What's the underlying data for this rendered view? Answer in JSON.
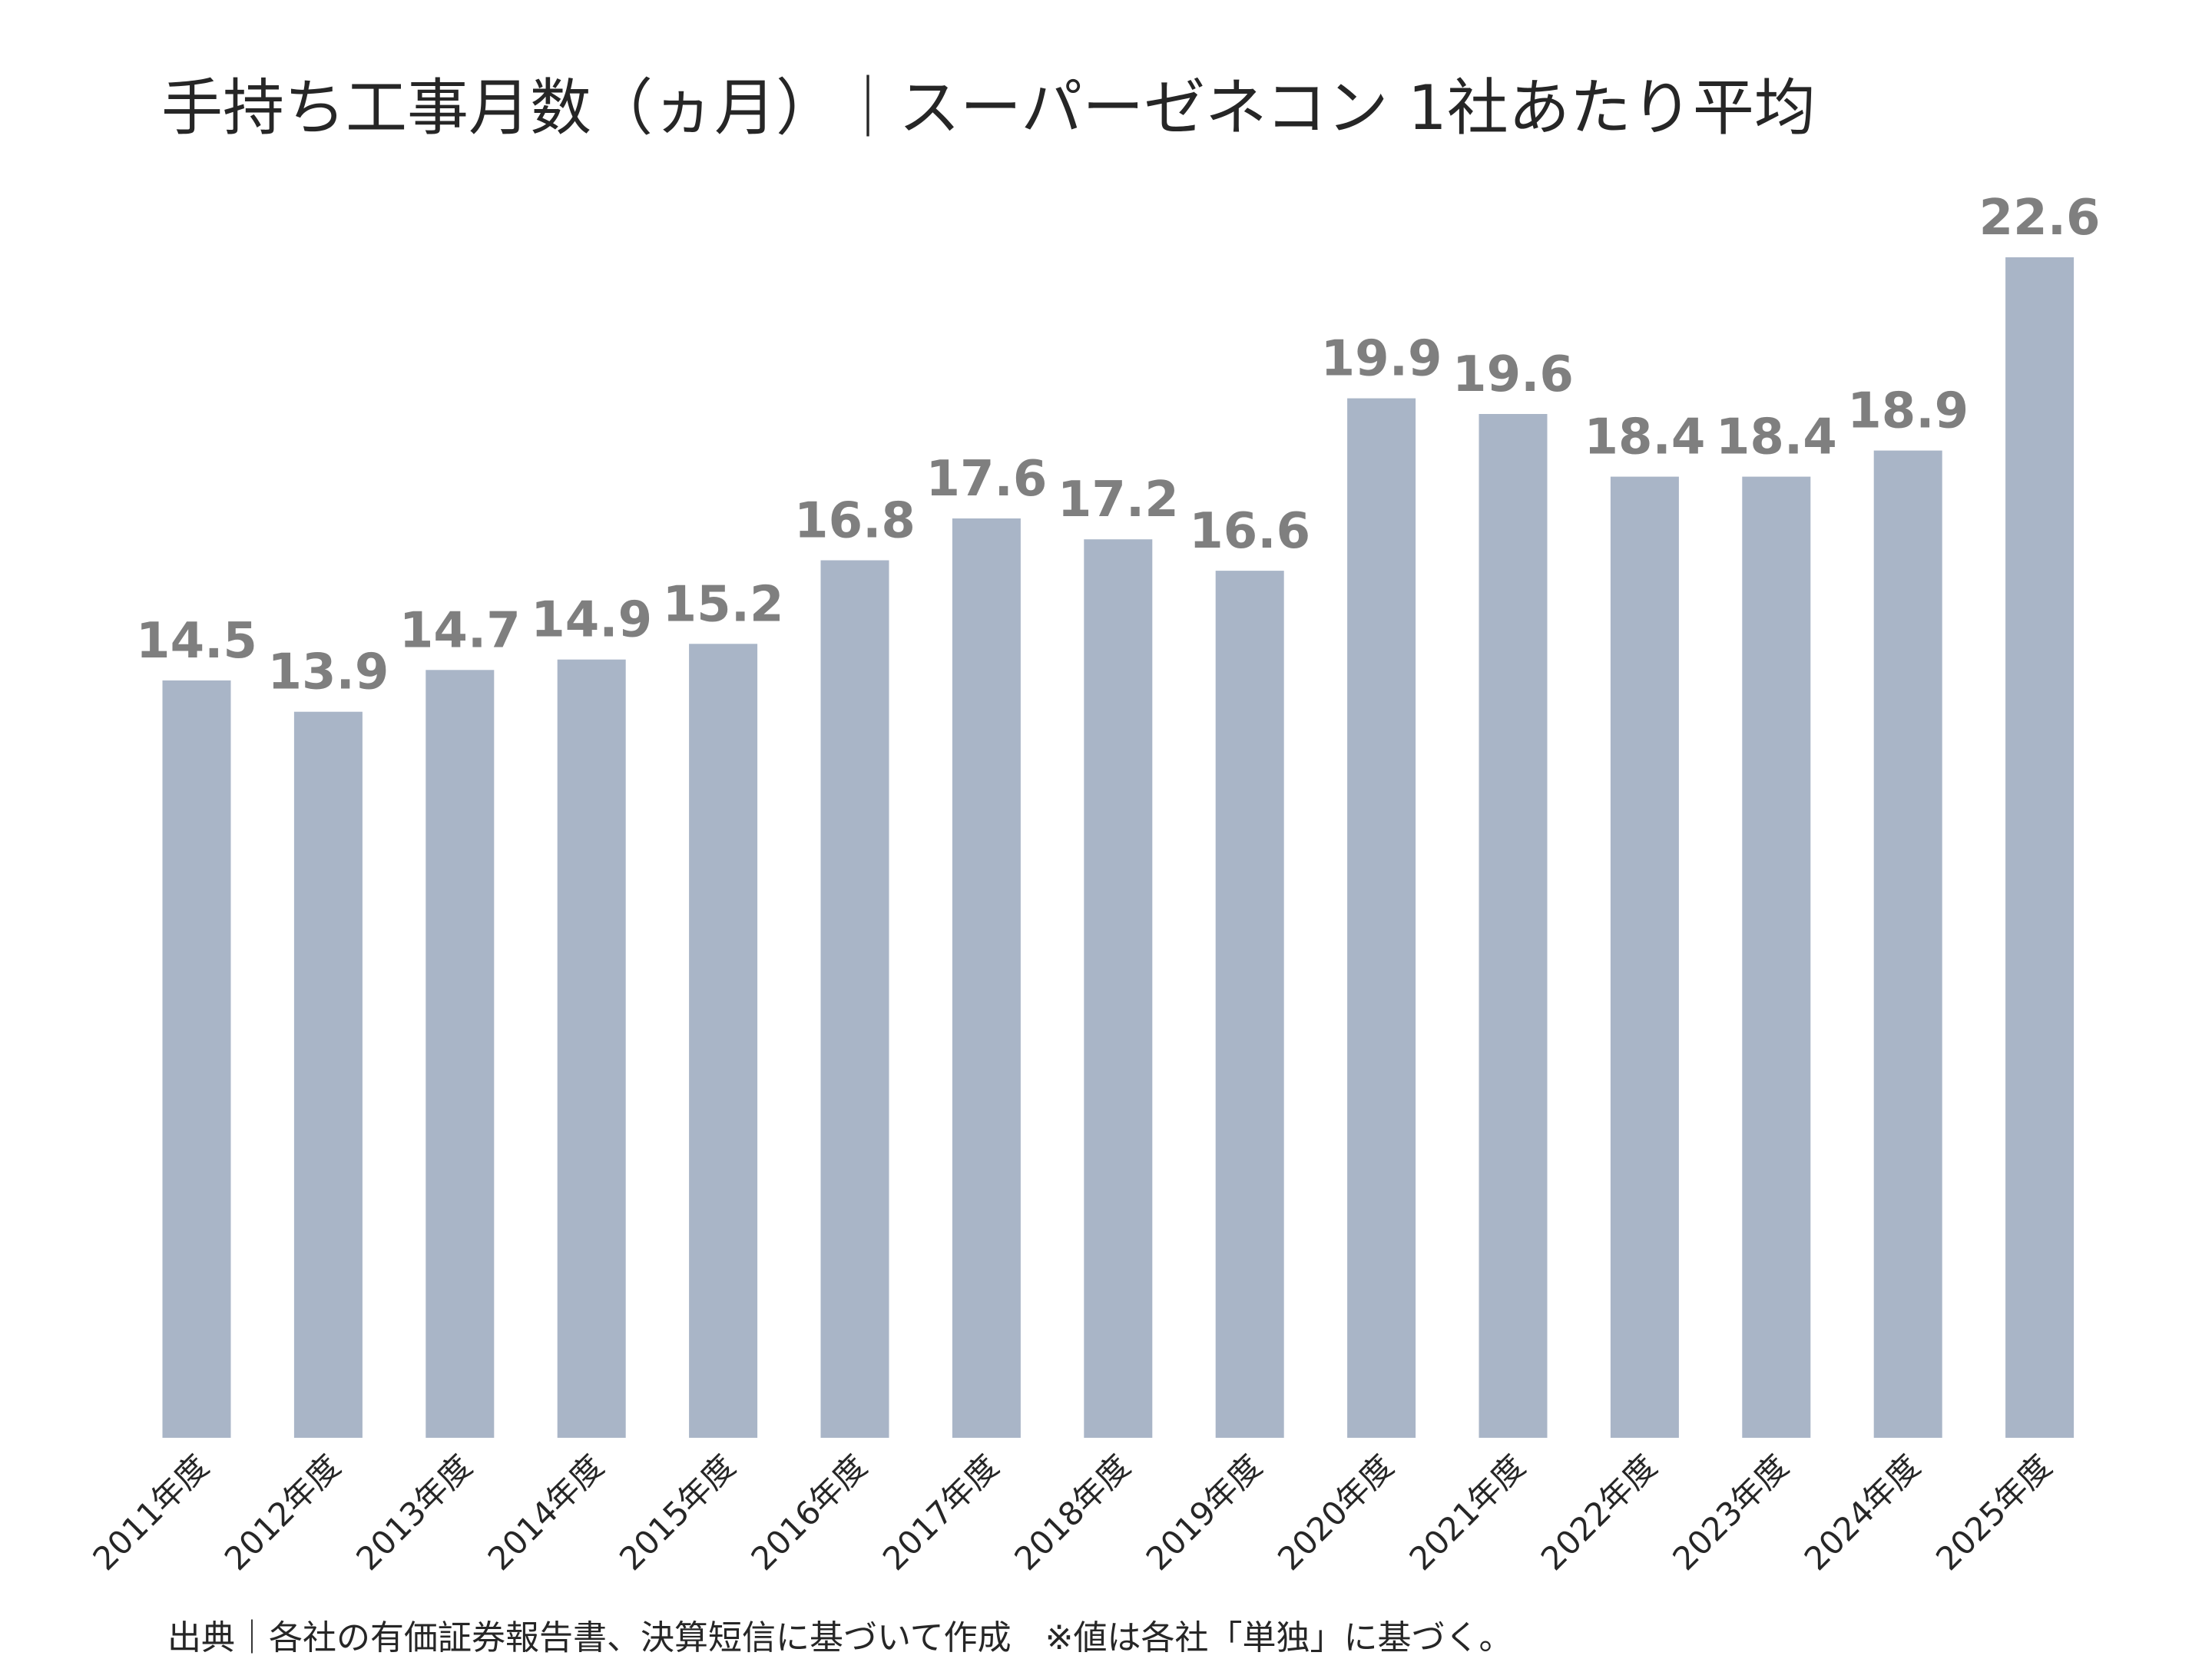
{
  "chart_data": {
    "type": "bar",
    "title": "手持ち工事月数（ヵ月）｜スーパーゼネコン 1社あたり平均",
    "categories": [
      "2011年度",
      "2012年度",
      "2013年度",
      "2014年度",
      "2015年度",
      "2016年度",
      "2017年度",
      "2018年度",
      "2019年度",
      "2020年度",
      "2021年度",
      "2022年度",
      "2023年度",
      "2024年度",
      "2025年度"
    ],
    "values": [
      14.5,
      13.9,
      14.7,
      14.9,
      15.2,
      16.8,
      17.6,
      17.2,
      16.6,
      19.9,
      19.6,
      18.4,
      18.4,
      18.9,
      22.6
    ],
    "data_labels": [
      "14.5",
      "13.9",
      "14.7",
      "14.9",
      "15.2",
      "16.8",
      "17.6",
      "17.2",
      "16.6",
      "19.9",
      "19.6",
      "18.4",
      "18.4",
      "18.9",
      "22.6"
    ],
    "ylim": [
      0,
      22.6
    ],
    "grid": false,
    "legend": "none",
    "bar_color": "#a9b5c7",
    "label_color": "#7f7f7f",
    "note": "出典｜各社の有価証券報告書、決算短信に基づいて作成　※値は各社「単独」に基づく。"
  }
}
